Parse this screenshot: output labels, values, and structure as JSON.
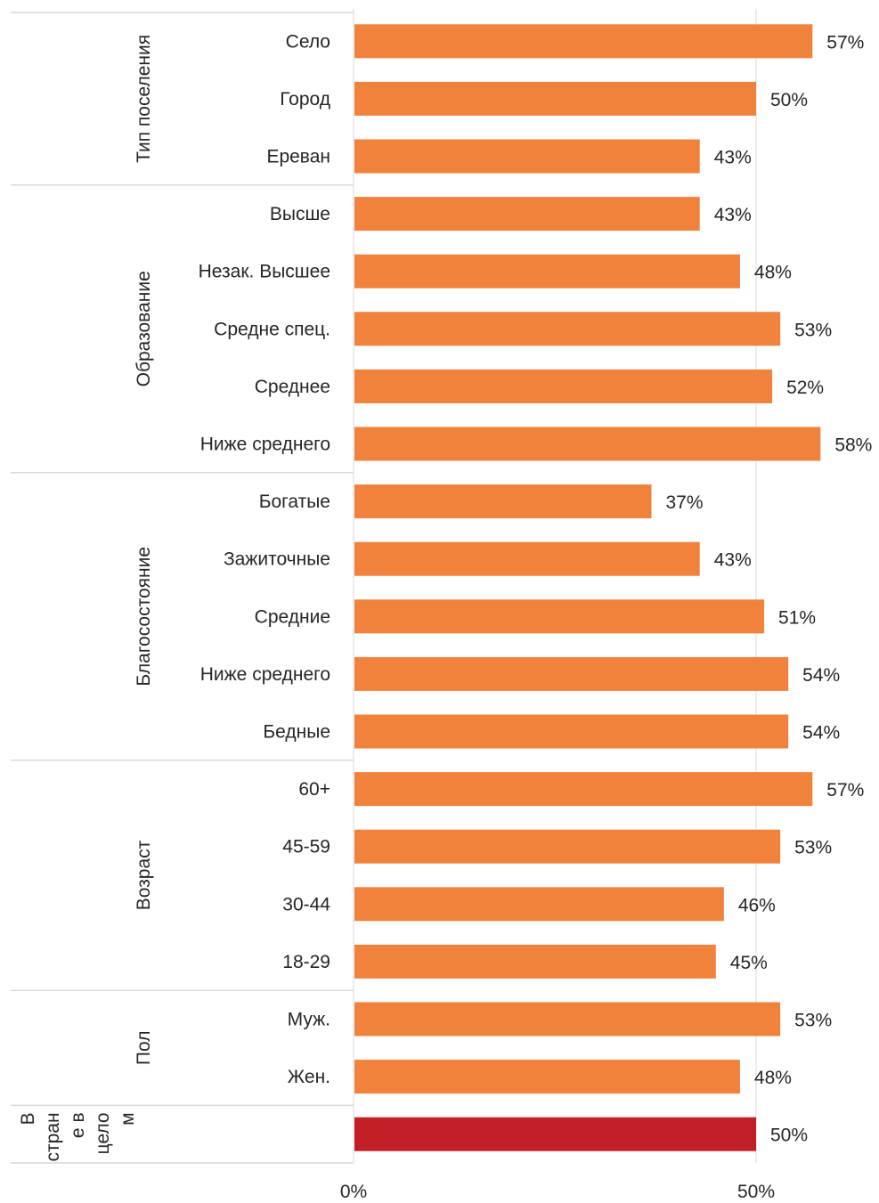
{
  "chart_data": {
    "type": "bar",
    "orientation": "horizontal",
    "xlim": [
      0,
      60
    ],
    "grid": true,
    "x_ticks": [
      {
        "value": 0,
        "label": "0%"
      },
      {
        "value": 50,
        "label": "50%"
      }
    ],
    "groups": [
      {
        "name": "Тип поселения",
        "categories": [
          "Село",
          "Город",
          "Ереван"
        ],
        "values": [
          57,
          50,
          43
        ],
        "labels": [
          "57%",
          "50%",
          "43%"
        ]
      },
      {
        "name": "Образование",
        "categories": [
          "Высше",
          "Незак. Высшее",
          "Средне спец.",
          "Среднее",
          "Ниже среднего"
        ],
        "values": [
          43,
          48,
          53,
          52,
          58
        ],
        "labels": [
          "43%",
          "48%",
          "53%",
          "52%",
          "58%"
        ]
      },
      {
        "name": "Благосостояние",
        "categories": [
          "Богатые",
          "Зажиточные",
          "Средние",
          "Ниже среднего",
          "Бедные"
        ],
        "values": [
          37,
          43,
          51,
          54,
          54
        ],
        "labels": [
          "37%",
          "43%",
          "51%",
          "54%",
          "54%"
        ]
      },
      {
        "name": "Возраст",
        "categories": [
          "60+",
          "45-59",
          "30-44",
          "18-29"
        ],
        "values": [
          57,
          53,
          46,
          45
        ],
        "labels": [
          "57%",
          "53%",
          "46%",
          "45%"
        ]
      },
      {
        "name": "Пол",
        "categories": [
          "Муж.",
          "Жен."
        ],
        "values": [
          53,
          48
        ],
        "labels": [
          "53%",
          "48%"
        ]
      },
      {
        "name": "В стран е в цело м",
        "name_lines": [
          "В",
          "стран",
          "е в",
          "цело",
          "м"
        ],
        "categories": [
          ""
        ],
        "values": [
          50
        ],
        "labels": [
          "50%"
        ],
        "highlight": true
      }
    ],
    "colors": {
      "bar": "#f0823c",
      "highlight_bar": "#c11f25",
      "grid": "#d9d9d9",
      "separator": "#d9d9d9",
      "text": "#262626"
    }
  }
}
